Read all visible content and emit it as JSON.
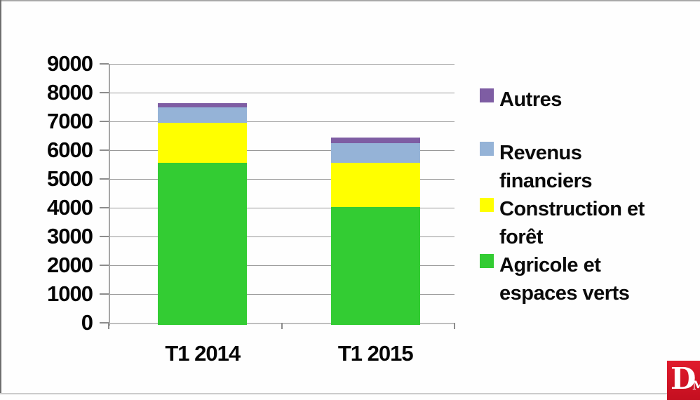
{
  "chart_data": {
    "type": "bar",
    "stacked": true,
    "title": "",
    "xlabel": "",
    "ylabel": "",
    "categories": [
      "T1 2014",
      "T1 2015"
    ],
    "series": [
      {
        "name": "Agricole et espaces verts",
        "values": [
          5570,
          4030
        ],
        "color": "#33cc33"
      },
      {
        "name": "Construction et forêt",
        "values": [
          1390,
          1540
        ],
        "color": "#ffff00"
      },
      {
        "name": "Revenus financiers",
        "values": [
          520,
          680
        ],
        "color": "#95b3d7"
      },
      {
        "name": "Autres",
        "values": [
          150,
          200
        ],
        "color": "#7e5da3"
      }
    ],
    "totals": [
      7630,
      6450
    ],
    "ylim": [
      0,
      9000
    ],
    "ytick_step": 1000,
    "grid": true,
    "legend_position": "right",
    "legend": [
      {
        "label": "Autres",
        "color": "#7e5da3"
      },
      {
        "label": "Revenus\nfinanciers",
        "color": "#95b3d7"
      },
      {
        "label": "Construction et\nforêt",
        "color": "#ffff00"
      },
      {
        "label": "Agricole et\nespaces verts",
        "color": "#33cc33"
      }
    ]
  },
  "logo": {
    "letter": "D",
    "sub": "M",
    "background": "#cd1126",
    "foreground": "#ffffff"
  }
}
